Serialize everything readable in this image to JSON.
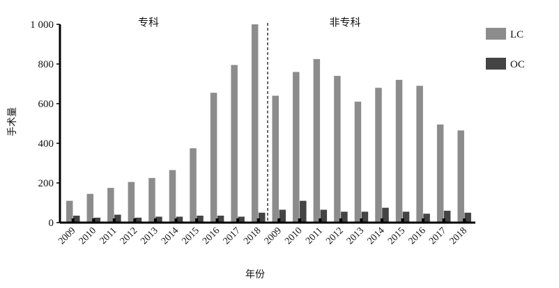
{
  "chart_data": {
    "type": "bar",
    "title": "",
    "xlabel": "年份",
    "ylabel": "手术量",
    "ylim": [
      0,
      1000
    ],
    "yticks": [
      0,
      200,
      400,
      600,
      800,
      1000
    ],
    "ytick_labels": [
      "0",
      "200",
      "400",
      "600",
      "800",
      "1 000"
    ],
    "categories": [
      "2009",
      "2010",
      "2011",
      "2012",
      "2013",
      "2014",
      "2015",
      "2016",
      "2017",
      "2018",
      "2009",
      "2010",
      "2011",
      "2012",
      "2013",
      "2014",
      "2015",
      "2016",
      "2017",
      "2018"
    ],
    "groups": [
      {
        "label": "专科",
        "start_index": 0,
        "end_index": 9
      },
      {
        "label": "非专科",
        "start_index": 10,
        "end_index": 19
      }
    ],
    "series": [
      {
        "name": "LC",
        "color": "#8c8c8c",
        "values": [
          110,
          145,
          175,
          205,
          225,
          265,
          375,
          655,
          795,
          1000,
          640,
          760,
          825,
          740,
          610,
          680,
          720,
          690,
          495,
          465
        ]
      },
      {
        "name": "OC",
        "color": "#444444",
        "values": [
          35,
          25,
          40,
          25,
          30,
          30,
          35,
          35,
          30,
          50,
          65,
          110,
          65,
          55,
          55,
          75,
          55,
          45,
          60,
          50
        ]
      }
    ],
    "legend": "right",
    "grid": false
  }
}
